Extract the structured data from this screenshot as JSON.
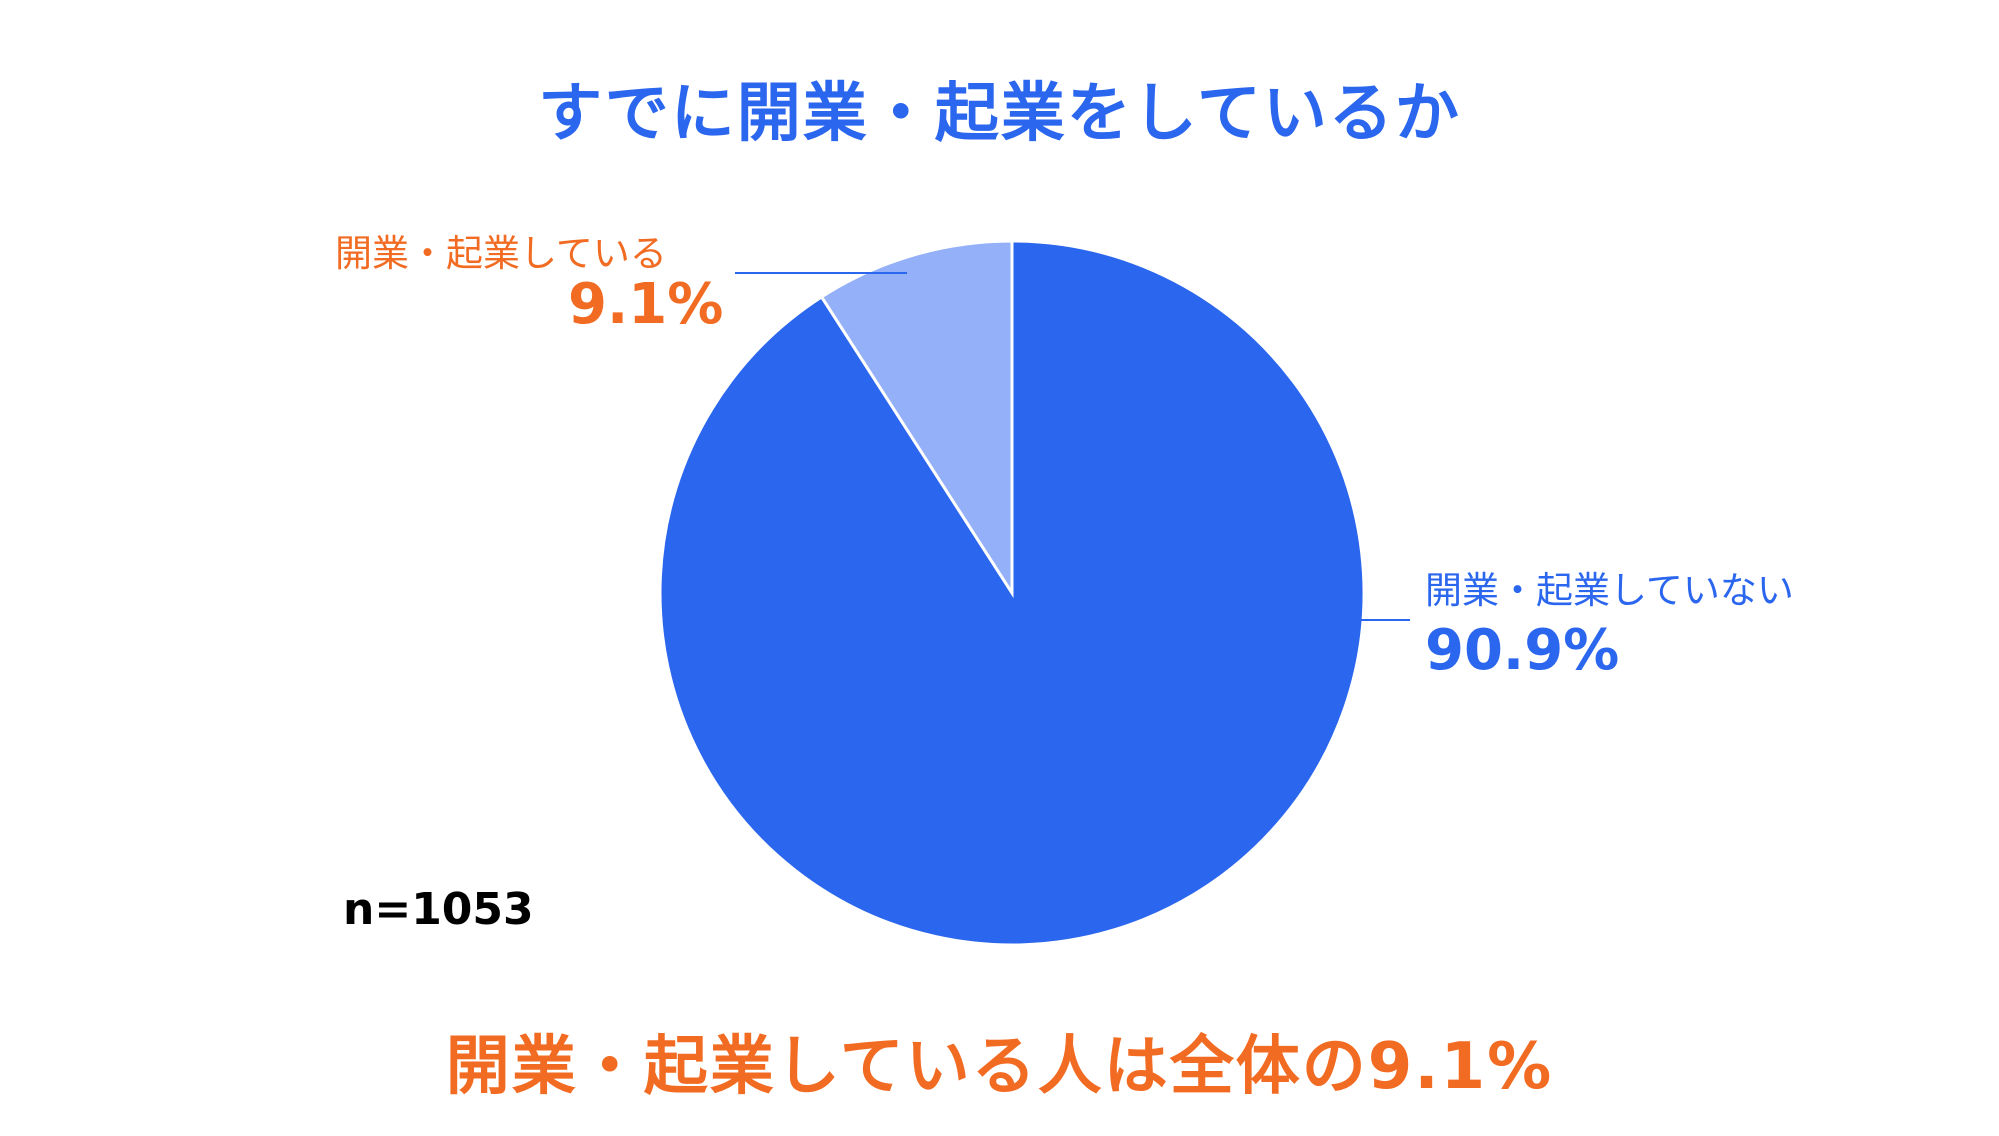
{
  "chart_data": {
    "type": "pie",
    "title": "すでに開業・起業をしているか",
    "slices": [
      {
        "label": "開業・起業している",
        "value": 9.1,
        "display": "9.1%",
        "color": "#93b0f8",
        "label_color": "#f26b22"
      },
      {
        "label": "開業・起業していない",
        "value": 90.9,
        "display": "90.9%",
        "color": "#2b66ee",
        "label_color": "#2b66ee"
      }
    ],
    "sample_size": "n=1053",
    "conclusion": "開業・起業している人は全体の9.1%"
  }
}
